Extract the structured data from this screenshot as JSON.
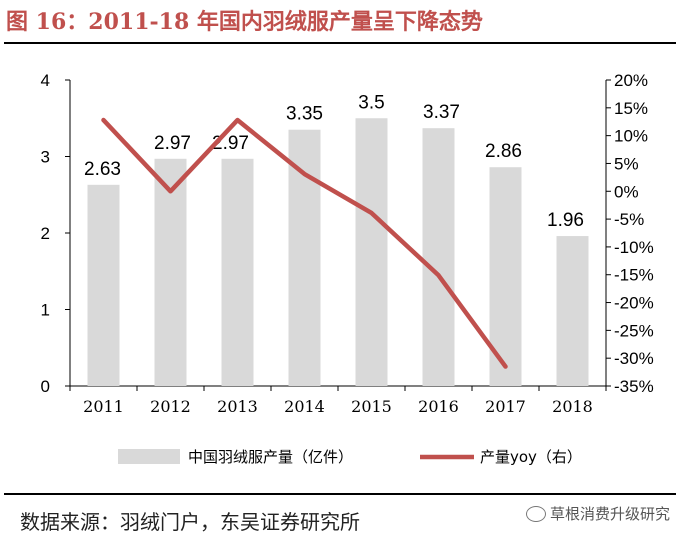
{
  "title": "图 16：2011-18 年国内羽绒服产量呈下降态势",
  "source": "数据来源：羽绒门户，东吴证券研究所",
  "watermark": "草根消费升级研究",
  "colors": {
    "bar": "#d9d9d9",
    "line": "#c0504d",
    "title": "#c0504d"
  },
  "chart_data": {
    "type": "bar",
    "categories": [
      "2011",
      "2012",
      "2013",
      "2014",
      "2015",
      "2016",
      "2017",
      "2018"
    ],
    "series": [
      {
        "name": "中国羽绒服产量（亿件）",
        "type": "bar",
        "axis": "left",
        "values": [
          2.63,
          2.97,
          2.97,
          3.35,
          3.5,
          3.37,
          2.86,
          1.96
        ],
        "labels": [
          "2.63",
          "2.97",
          "2.97",
          "3.35",
          "3.5",
          "3.37",
          "2.86",
          "1.96"
        ]
      },
      {
        "name": "产量yoy（右）",
        "type": "line",
        "axis": "right",
        "values": [
          12.8,
          0,
          12.8,
          3.1,
          -3.9,
          -15.1,
          -31.5,
          null
        ]
      }
    ],
    "y_left": {
      "min": 0,
      "max": 4,
      "ticks": [
        "0",
        "1",
        "2",
        "3",
        "4"
      ]
    },
    "y_right": {
      "min": -35,
      "max": 20,
      "ticks": [
        "20%",
        "15%",
        "10%",
        "5%",
        "0%",
        "-5%",
        "-10%",
        "-15%",
        "-20%",
        "-25%",
        "-30%",
        "-35%"
      ]
    },
    "grid": false,
    "legend_position": "bottom"
  }
}
